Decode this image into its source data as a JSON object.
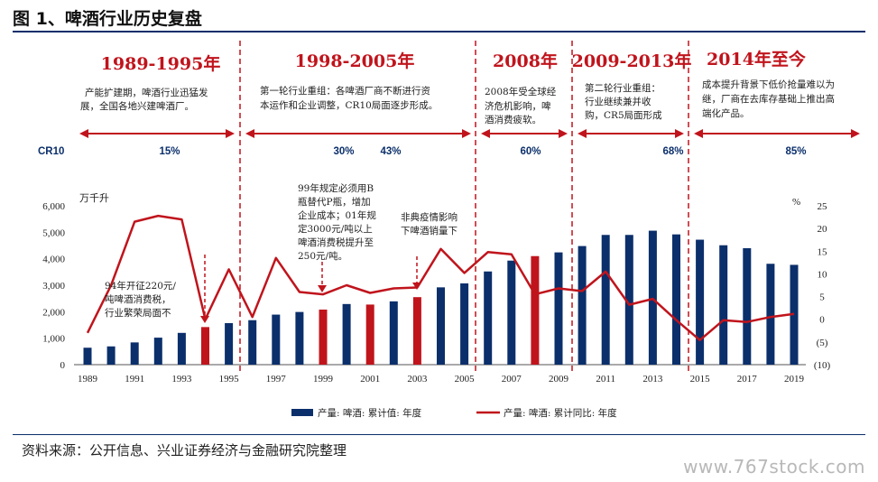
{
  "figure_title": "图 1、啤酒行业历史复盘",
  "source": "资料来源：公开信息、兴业证券经济与金融研究院整理",
  "watermark": "www.767stock.com",
  "colors": {
    "bar": "#0b2f6b",
    "bar_highlight": "#c0141c",
    "line": "#c0141c",
    "divider": "#c0141c",
    "cr": "#0b2f6b"
  },
  "periods": [
    {
      "title": "1989-1995年",
      "desc": [
        "产能扩建期，啤酒行业迅猛发",
        "展，全国各地兴建啤酒厂。"
      ]
    },
    {
      "title": "1998-2005年",
      "desc": [
        "第一轮行业重组：各啤酒厂商不断进行资",
        "本运作和企业调整，CR10局面逐步形成。"
      ]
    },
    {
      "title": "2008年",
      "desc": [
        "2008年受全球经",
        "济危机影响，啤",
        "酒消费疲软。"
      ]
    },
    {
      "title": "2009-2013年",
      "desc": [
        "第二轮行业重组：",
        "行业继续兼并收",
        "购，CR5局面形成"
      ]
    },
    {
      "title": "2014年至今",
      "desc": [
        "成本提升背景下低价抢量难以为",
        "继，厂商在去库存基础上推出高",
        "端化产品。"
      ]
    }
  ],
  "cr_row": {
    "label": "CR10",
    "values": [
      "15%",
      "30%",
      "43%",
      "60%",
      "68%",
      "85%"
    ]
  },
  "annotations": {
    "a1994": [
      "94年开征220元/",
      "吨啤酒消费税，",
      "行业繁荣局面不"
    ],
    "a1999": [
      "99年规定必须用B",
      "瓶替代P瓶，增加",
      "企业成本；01年规",
      "定3000元/吨以上",
      "啤酒消费税提升至",
      "250元/吨。"
    ],
    "a2003": [
      "非典疫情影响",
      "下啤酒销量下"
    ]
  },
  "chart_data": {
    "type": "bar",
    "years": [
      1989,
      1990,
      1991,
      1992,
      1993,
      1994,
      1995,
      1996,
      1997,
      1998,
      1999,
      2000,
      2001,
      2002,
      2003,
      2004,
      2005,
      2006,
      2007,
      2008,
      2009,
      2010,
      2011,
      2012,
      2013,
      2014,
      2015,
      2016,
      2017,
      2018,
      2019
    ],
    "x_tick_labels": [
      "1989",
      "1991",
      "1993",
      "1995",
      "1997",
      "1999",
      "2001",
      "2003",
      "2005",
      "2007",
      "2009",
      "2011",
      "2013",
      "2015",
      "2017",
      "2019"
    ],
    "left_axis": {
      "unit": "万千升",
      "ticks": [
        "0",
        "1,000",
        "2,000",
        "3,000",
        "4,000",
        "5,000",
        "6,000"
      ],
      "ylim": [
        0,
        6000
      ]
    },
    "right_axis": {
      "unit": "%",
      "ticks": [
        "(10)",
        "(5)",
        "0",
        "5",
        "10",
        "15",
        "20",
        "25"
      ],
      "ylim": [
        -10,
        25
      ]
    },
    "highlight_years": [
      1994,
      1999,
      2001,
      2003,
      2008
    ],
    "series": [
      {
        "name": "产量: 啤酒: 累计值: 年度",
        "kind": "bar",
        "axis": "left",
        "values": [
          640,
          690,
          840,
          1020,
          1200,
          1420,
          1570,
          1680,
          1890,
          1990,
          2080,
          2290,
          2270,
          2390,
          2550,
          2920,
          3070,
          3520,
          3930,
          4100,
          4240,
          4480,
          4900,
          4900,
          5060,
          4920,
          4720,
          4510,
          4400,
          3810,
          3770
        ]
      },
      {
        "name": "产量: 啤酒: 累计同比: 年度",
        "kind": "line",
        "axis": "right",
        "values": [
          -3.0,
          7.5,
          21.5,
          22.8,
          22.0,
          0.0,
          11.0,
          0.5,
          13.5,
          6.0,
          5.5,
          7.5,
          5.8,
          6.8,
          7.0,
          15.5,
          10.2,
          14.8,
          14.3,
          5.5,
          6.8,
          6.2,
          10.5,
          3.2,
          4.5,
          -0.2,
          -4.6,
          -0.2,
          -0.6,
          0.5,
          1.2
        ]
      }
    ]
  }
}
